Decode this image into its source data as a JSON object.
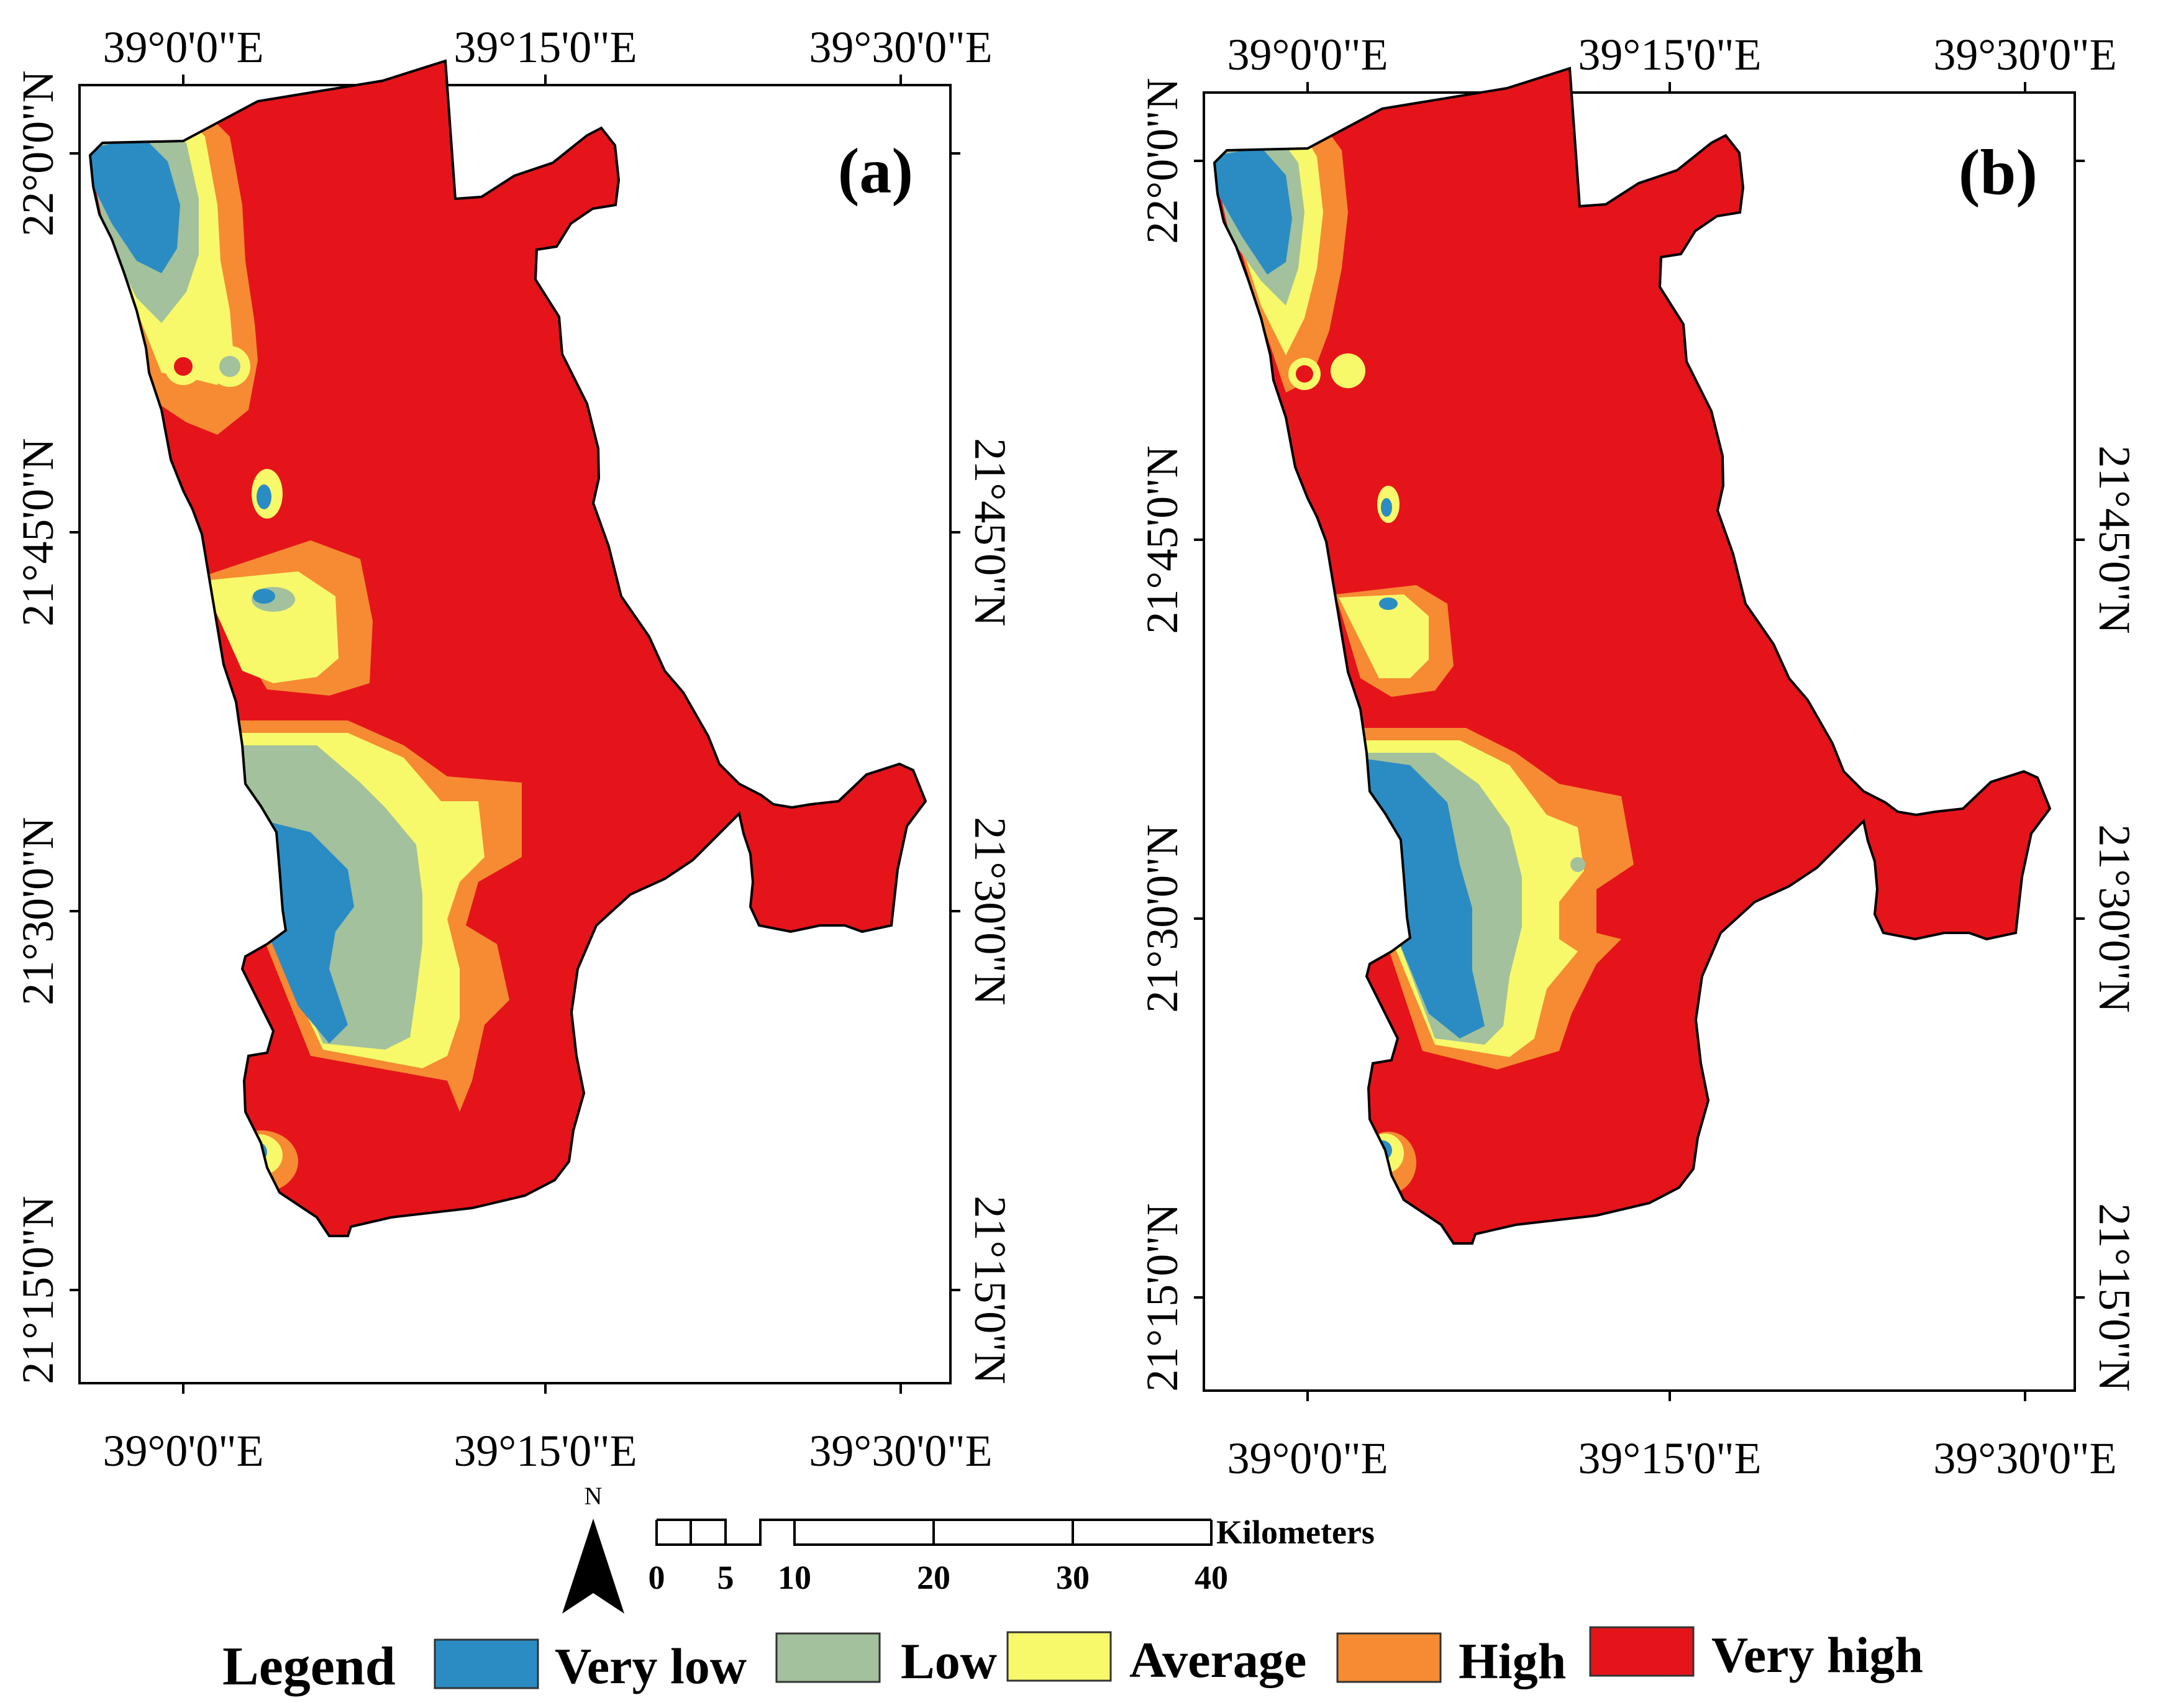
{
  "panels": [
    {
      "label": "(a)",
      "top_ticks": [
        "39°0'0\"E",
        "39°15'0\"E",
        "39°30'0\"E"
      ],
      "bottom_ticks": [
        "39°0'0\"E",
        "39°15'0\"E",
        "39°30'0\"E"
      ],
      "left_ticks": [
        "22°0'0\"N",
        "21°45'0\"N",
        "21°30'0\"N",
        "21°15'0\"N"
      ],
      "right_ticks": [
        "21°45'0\"N",
        "21°30'0\"N",
        "21°15'0\"N"
      ]
    },
    {
      "label": "(b)",
      "top_ticks": [
        "39°0'0\"E",
        "39°15'0\"E",
        "39°30'0\"E"
      ],
      "bottom_ticks": [
        "39°0'0\"E",
        "39°15'0\"E",
        "39°30'0\"E"
      ],
      "left_ticks": [
        "22°0'0\"N",
        "21°45'0\"N",
        "21°30'0\"N",
        "21°15'0\"N"
      ],
      "right_ticks": [
        "21°45'0\"N",
        "21°30'0\"N",
        "21°15'0\"N"
      ]
    }
  ],
  "north_arrow": {
    "label": "N"
  },
  "scale_bar": {
    "unit": "Kilometers",
    "ticks": [
      "0",
      "5",
      "10",
      "20",
      "30",
      "40"
    ]
  },
  "legend": {
    "title": "Legend",
    "items": [
      {
        "label": "Very low",
        "color": "#2b8cc4"
      },
      {
        "label": "Low",
        "color": "#a3c19c"
      },
      {
        "label": "Average",
        "color": "#f7f96a"
      },
      {
        "label": "High",
        "color": "#f68b33"
      },
      {
        "label": "Very high",
        "color": "#e5141a"
      }
    ]
  }
}
